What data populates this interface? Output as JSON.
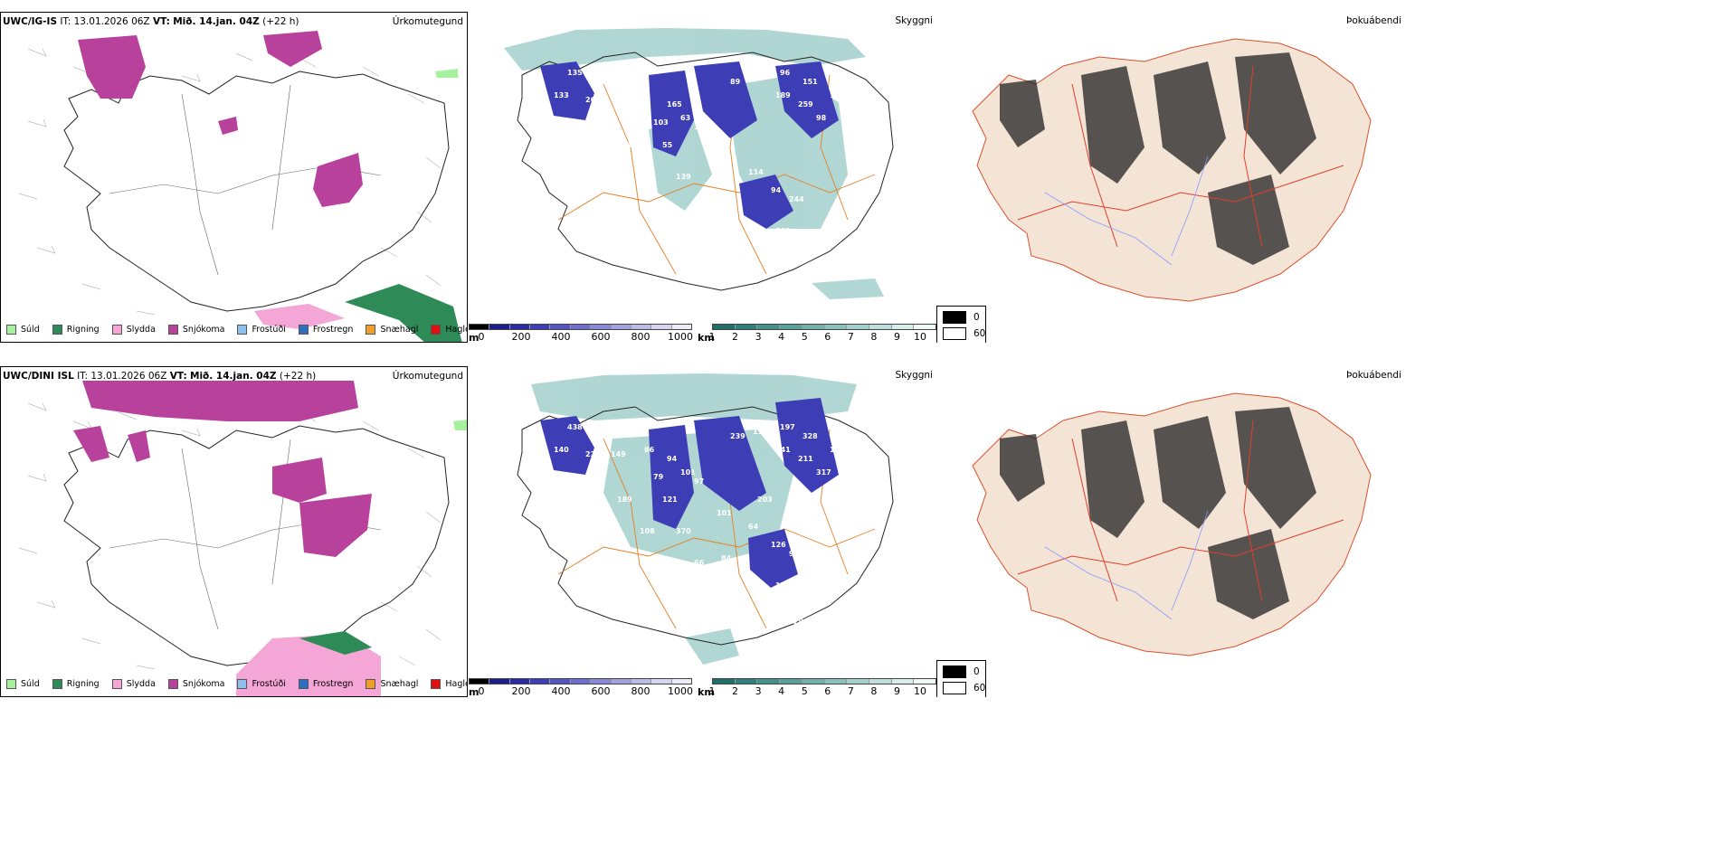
{
  "rows": [
    {
      "model": "UWC/IG-IS",
      "it_label": "IT:",
      "it_value": "13.01.2026 06Z",
      "vt_label": "VT:",
      "vt_value": "Mið. 14.jan. 04Z",
      "lead": "(+22 h)",
      "panel_titles": {
        "precip": "Úrkomutegund",
        "visibility": "Skyggni",
        "fog": "Þokuábendi"
      },
      "snow_labels": [
        "135",
        "125",
        "133",
        "262",
        "146",
        "1",
        "165",
        "103",
        "63",
        "188",
        "89",
        "164",
        "96",
        "151",
        "189",
        "259",
        "98",
        "109",
        "55",
        "111",
        "193",
        "114",
        "94",
        "244",
        "93",
        "47",
        "147",
        "106",
        "139",
        "803",
        "860"
      ]
    },
    {
      "model": "UWC/DINI ISL",
      "it_label": "IT:",
      "it_value": "13.01.2026 06Z",
      "vt_label": "VT:",
      "vt_value": "Mið. 14.jan. 04Z",
      "lead": "(+22 h)",
      "panel_titles": {
        "precip": "Úrkomutegund",
        "visibility": "Skyggni",
        "fog": "Þokuábendi"
      },
      "snow_labels": [
        "438",
        "173",
        "140",
        "222",
        "149",
        "86",
        "94",
        "79",
        "101",
        "97",
        "239",
        "118",
        "197",
        "328",
        "141",
        "211",
        "317",
        "109",
        "121",
        "189",
        "101",
        "64",
        "126",
        "911",
        "84",
        "66",
        "162",
        "108",
        "370",
        "125",
        "164",
        "294",
        "37",
        "203"
      ]
    }
  ],
  "precip_legend": [
    {
      "label": "Súld",
      "color": "#a6f0a0"
    },
    {
      "label": "Rigning",
      "color": "#2e8b57"
    },
    {
      "label": "Slydda",
      "color": "#f4a6d7"
    },
    {
      "label": "Snjókoma",
      "color": "#b8429b"
    },
    {
      "label": "Frostúði",
      "color": "#8fc1ef"
    },
    {
      "label": "Frostregn",
      "color": "#2f6fc0"
    },
    {
      "label": "Snæhagl",
      "color": "#f0a02a"
    },
    {
      "label": "Haglél",
      "color": "#e01010"
    }
  ],
  "snow_scale": {
    "unit": "m",
    "ticks": [
      "0",
      "200",
      "400",
      "600",
      "800",
      "1000"
    ],
    "colors": [
      "#000000",
      "#1c1c8c",
      "#2b2ba6",
      "#3d3db6",
      "#5555c2",
      "#6e6ecd",
      "#8888d6",
      "#a2a2df",
      "#bcbce8",
      "#d6d6f1",
      "#ececf8"
    ]
  },
  "vis_scale": {
    "unit": "km",
    "ticks": [
      "1",
      "2",
      "3",
      "4",
      "5",
      "6",
      "7",
      "8",
      "9",
      "10"
    ],
    "colors": [
      "#1f6f6b",
      "#2f807b",
      "#42918b",
      "#58a19b",
      "#70b1ac",
      "#8ac1bc",
      "#a4d0cc",
      "#bedfdc",
      "#d8eeeb",
      "#f0f8f7"
    ]
  },
  "fog_key": [
    {
      "label": "0",
      "color": "#000000"
    },
    {
      "label": "60",
      "color": "#ffffff"
    }
  ]
}
